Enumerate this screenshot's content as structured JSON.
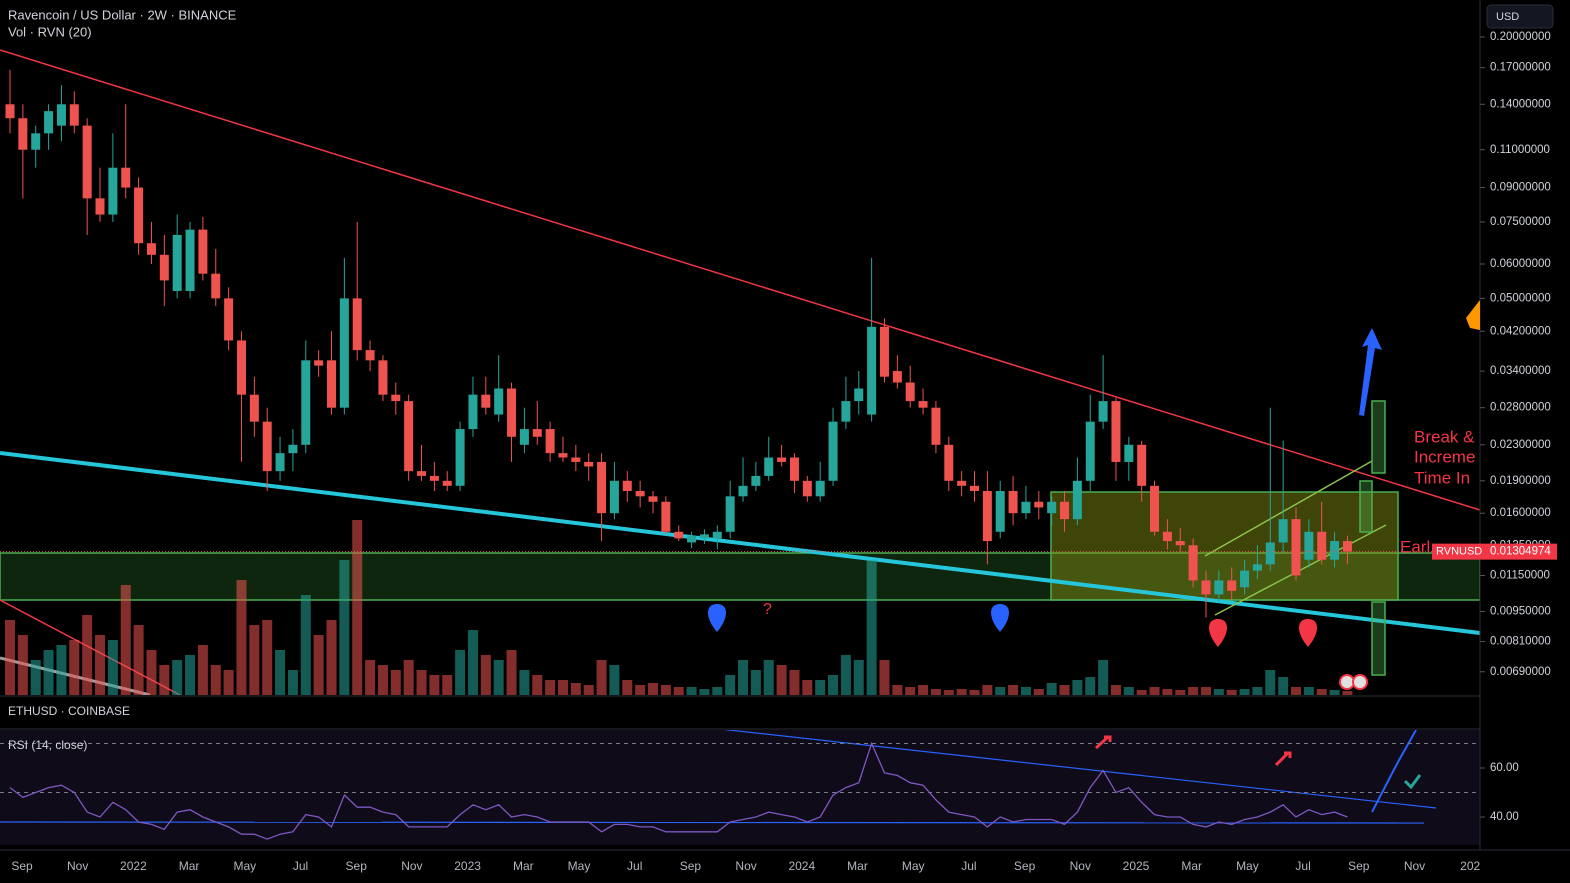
{
  "chart_data": [
    {
      "type": "candlestick",
      "title": "Ravencoin / US Dollar · 2W · BINANCE",
      "volume_label": "Vol · RVN (20)",
      "currency_button": "USD",
      "log_scale": true,
      "up_color": "#26a69a",
      "down_color": "#ef5350",
      "ylim": [
        0.0061,
        0.2434
      ],
      "yticks": [
        {
          "value": 0.2,
          "label": "0.20000000"
        },
        {
          "value": 0.17,
          "label": "0.17000000"
        },
        {
          "value": 0.14,
          "label": "0.14000000"
        },
        {
          "value": 0.11,
          "label": "0.11000000"
        },
        {
          "value": 0.09,
          "label": "0.09000000"
        },
        {
          "value": 0.075,
          "label": "0.07500000"
        },
        {
          "value": 0.06,
          "label": "0.06000000"
        },
        {
          "value": 0.05,
          "label": "0.05000000"
        },
        {
          "value": 0.042,
          "label": "0.04200000"
        },
        {
          "value": 0.034,
          "label": "0.03400000"
        },
        {
          "value": 0.028,
          "label": "0.02800000"
        },
        {
          "value": 0.023,
          "label": "0.02300000"
        },
        {
          "value": 0.019,
          "label": "0.01900000"
        },
        {
          "value": 0.016,
          "label": "0.01600000"
        },
        {
          "value": 0.0135,
          "label": "0.01350000"
        },
        {
          "value": 0.0115,
          "label": "0.01150000"
        },
        {
          "value": 0.0095,
          "label": "0.00950000"
        },
        {
          "value": 0.0081,
          "label": "0.00810000"
        },
        {
          "value": 0.0069,
          "label": "0.00690000"
        }
      ],
      "last_price": {
        "symbol": "RVNUSD",
        "value": 0.01304974
      },
      "x_labels": [
        "Sep",
        "Nov",
        "2022",
        "Mar",
        "May",
        "Jul",
        "Sep",
        "Nov",
        "2023",
        "Mar",
        "May",
        "Jul",
        "Sep",
        "Nov",
        "2024",
        "Mar",
        "May",
        "Jul",
        "Sep",
        "Nov",
        "2025",
        "Mar",
        "May",
        "Jul",
        "Sep",
        "Nov",
        "202"
      ],
      "annotations": [
        "Break &",
        "Increme",
        "Time In",
        "Earl",
        "?"
      ],
      "ohlc": [
        [
          0.14,
          0.168,
          0.12,
          0.13
        ],
        [
          0.13,
          0.14,
          0.085,
          0.11
        ],
        [
          0.11,
          0.125,
          0.1,
          0.12
        ],
        [
          0.12,
          0.14,
          0.11,
          0.135
        ],
        [
          0.125,
          0.155,
          0.115,
          0.14
        ],
        [
          0.14,
          0.15,
          0.12,
          0.125
        ],
        [
          0.125,
          0.13,
          0.07,
          0.085
        ],
        [
          0.085,
          0.1,
          0.075,
          0.078
        ],
        [
          0.078,
          0.12,
          0.075,
          0.1
        ],
        [
          0.1,
          0.14,
          0.085,
          0.09
        ],
        [
          0.09,
          0.095,
          0.063,
          0.067
        ],
        [
          0.067,
          0.075,
          0.06,
          0.063
        ],
        [
          0.063,
          0.07,
          0.048,
          0.055
        ],
        [
          0.052,
          0.078,
          0.05,
          0.07
        ],
        [
          0.052,
          0.075,
          0.05,
          0.072
        ],
        [
          0.072,
          0.077,
          0.055,
          0.057
        ],
        [
          0.057,
          0.065,
          0.048,
          0.05
        ],
        [
          0.05,
          0.053,
          0.038,
          0.04
        ],
        [
          0.04,
          0.042,
          0.021,
          0.03
        ],
        [
          0.03,
          0.033,
          0.024,
          0.026
        ],
        [
          0.026,
          0.028,
          0.018,
          0.02
        ],
        [
          0.02,
          0.024,
          0.019,
          0.022
        ],
        [
          0.022,
          0.025,
          0.02,
          0.023
        ],
        [
          0.023,
          0.04,
          0.022,
          0.036
        ],
        [
          0.036,
          0.038,
          0.033,
          0.035
        ],
        [
          0.036,
          0.042,
          0.027,
          0.028
        ],
        [
          0.028,
          0.062,
          0.027,
          0.05
        ],
        [
          0.05,
          0.075,
          0.036,
          0.038
        ],
        [
          0.038,
          0.04,
          0.034,
          0.036
        ],
        [
          0.036,
          0.037,
          0.029,
          0.03
        ],
        [
          0.03,
          0.032,
          0.027,
          0.029
        ],
        [
          0.029,
          0.03,
          0.019,
          0.02
        ],
        [
          0.02,
          0.023,
          0.019,
          0.0195
        ],
        [
          0.0195,
          0.021,
          0.018,
          0.019
        ],
        [
          0.019,
          0.02,
          0.018,
          0.0185
        ],
        [
          0.0185,
          0.026,
          0.018,
          0.025
        ],
        [
          0.025,
          0.033,
          0.024,
          0.03
        ],
        [
          0.03,
          0.033,
          0.027,
          0.028
        ],
        [
          0.027,
          0.037,
          0.026,
          0.031
        ],
        [
          0.031,
          0.032,
          0.021,
          0.024
        ],
        [
          0.023,
          0.028,
          0.022,
          0.025
        ],
        [
          0.025,
          0.029,
          0.023,
          0.024
        ],
        [
          0.025,
          0.026,
          0.021,
          0.022
        ],
        [
          0.022,
          0.024,
          0.021,
          0.0215
        ],
        [
          0.0215,
          0.023,
          0.02,
          0.021
        ],
        [
          0.021,
          0.022,
          0.019,
          0.0205
        ],
        [
          0.021,
          0.022,
          0.0138,
          0.016
        ],
        [
          0.016,
          0.021,
          0.0155,
          0.019
        ],
        [
          0.019,
          0.02,
          0.017,
          0.018
        ],
        [
          0.018,
          0.019,
          0.0165,
          0.0175
        ],
        [
          0.0175,
          0.018,
          0.016,
          0.017
        ],
        [
          0.017,
          0.0175,
          0.0143,
          0.0145
        ],
        [
          0.0145,
          0.015,
          0.0138,
          0.014
        ],
        [
          0.0137,
          0.0145,
          0.0133,
          0.0142
        ],
        [
          0.014,
          0.0147,
          0.0136,
          0.0143
        ],
        [
          0.014,
          0.015,
          0.0132,
          0.0145
        ],
        [
          0.0145,
          0.019,
          0.014,
          0.0175
        ],
        [
          0.0175,
          0.0215,
          0.017,
          0.0185
        ],
        [
          0.0185,
          0.021,
          0.018,
          0.0195
        ],
        [
          0.0195,
          0.024,
          0.019,
          0.0215
        ],
        [
          0.0215,
          0.023,
          0.0205,
          0.021
        ],
        [
          0.0215,
          0.022,
          0.0178,
          0.019
        ],
        [
          0.019,
          0.0195,
          0.017,
          0.0175
        ],
        [
          0.0175,
          0.021,
          0.017,
          0.019
        ],
        [
          0.019,
          0.028,
          0.0185,
          0.026
        ],
        [
          0.026,
          0.033,
          0.025,
          0.029
        ],
        [
          0.029,
          0.034,
          0.027,
          0.031
        ],
        [
          0.027,
          0.062,
          0.026,
          0.043
        ],
        [
          0.043,
          0.045,
          0.032,
          0.033
        ],
        [
          0.034,
          0.037,
          0.031,
          0.032
        ],
        [
          0.032,
          0.035,
          0.028,
          0.029
        ],
        [
          0.029,
          0.031,
          0.027,
          0.028
        ],
        [
          0.028,
          0.029,
          0.022,
          0.023
        ],
        [
          0.023,
          0.024,
          0.018,
          0.019
        ],
        [
          0.019,
          0.02,
          0.0175,
          0.0185
        ],
        [
          0.0185,
          0.02,
          0.017,
          0.018
        ],
        [
          0.018,
          0.02,
          0.0122,
          0.0138
        ],
        [
          0.0145,
          0.019,
          0.014,
          0.018
        ],
        [
          0.018,
          0.0195,
          0.015,
          0.016
        ],
        [
          0.016,
          0.0185,
          0.0155,
          0.017
        ],
        [
          0.017,
          0.018,
          0.0155,
          0.0165
        ],
        [
          0.016,
          0.0175,
          0.015,
          0.017
        ],
        [
          0.017,
          0.018,
          0.0145,
          0.0155
        ],
        [
          0.0155,
          0.0215,
          0.015,
          0.019
        ],
        [
          0.019,
          0.03,
          0.018,
          0.026
        ],
        [
          0.026,
          0.037,
          0.025,
          0.029
        ],
        [
          0.029,
          0.0295,
          0.019,
          0.021
        ],
        [
          0.021,
          0.024,
          0.019,
          0.023
        ],
        [
          0.023,
          0.0235,
          0.017,
          0.0185
        ],
        [
          0.0185,
          0.019,
          0.0142,
          0.0145
        ],
        [
          0.0145,
          0.0155,
          0.0132,
          0.0138
        ],
        [
          0.0138,
          0.0148,
          0.013,
          0.0135
        ],
        [
          0.0135,
          0.014,
          0.0108,
          0.0112
        ],
        [
          0.0112,
          0.0118,
          0.0092,
          0.0104
        ],
        [
          0.0104,
          0.0118,
          0.01,
          0.0112
        ],
        [
          0.0112,
          0.012,
          0.0101,
          0.0106
        ],
        [
          0.0108,
          0.0125,
          0.0104,
          0.0118
        ],
        [
          0.0118,
          0.0135,
          0.0113,
          0.0122
        ],
        [
          0.0122,
          0.028,
          0.0118,
          0.0137
        ],
        [
          0.0137,
          0.0235,
          0.013,
          0.0155
        ],
        [
          0.0155,
          0.0165,
          0.0112,
          0.0115
        ],
        [
          0.0125,
          0.0155,
          0.012,
          0.0145
        ],
        [
          0.0145,
          0.017,
          0.0122,
          0.0125
        ],
        [
          0.0125,
          0.0145,
          0.012,
          0.0138
        ],
        [
          0.0138,
          0.0142,
          0.0122,
          0.01304974
        ]
      ],
      "volume_lim": [
        0,
        180
      ],
      "volume": [
        75,
        60,
        35,
        45,
        50,
        55,
        80,
        60,
        55,
        110,
        70,
        45,
        30,
        35,
        40,
        50,
        30,
        25,
        115,
        70,
        75,
        45,
        25,
        100,
        60,
        75,
        135,
        175,
        35,
        30,
        25,
        35,
        25,
        20,
        20,
        45,
        65,
        40,
        35,
        45,
        25,
        20,
        15,
        15,
        12,
        10,
        35,
        30,
        15,
        10,
        12,
        10,
        8,
        8,
        6,
        8,
        20,
        35,
        25,
        35,
        30,
        25,
        15,
        15,
        20,
        40,
        35,
        135,
        35,
        10,
        8,
        10,
        6,
        5,
        6,
        5,
        10,
        8,
        10,
        8,
        6,
        12,
        10,
        15,
        18,
        35,
        10,
        8,
        5,
        8,
        6,
        5,
        8,
        8,
        6,
        5,
        6,
        8,
        25,
        18,
        8,
        8,
        6,
        5,
        4
      ]
    },
    {
      "type": "line",
      "symbol_label": "ETHUSD · COINBASE",
      "title": "RSI (14, close)",
      "color": "#7e57c2",
      "ylim": [
        28.6,
        75.5
      ],
      "yticks": [
        {
          "value": 60,
          "label": "60.00"
        },
        {
          "value": 40,
          "label": "40.00"
        }
      ],
      "levels": [
        70,
        50
      ],
      "values": [
        52,
        48,
        50,
        52,
        53,
        50,
        42,
        40,
        46,
        43,
        38,
        37,
        35,
        42,
        43,
        40,
        38,
        36,
        33,
        33,
        31,
        33,
        34,
        41,
        40,
        36,
        49,
        44,
        44,
        42,
        41,
        36,
        36,
        36,
        36,
        41,
        45,
        43,
        45,
        40,
        41,
        40,
        38,
        38,
        38,
        38,
        34,
        37,
        37,
        36,
        36,
        34,
        34,
        34,
        34,
        34,
        38,
        39,
        40,
        42,
        41,
        40,
        38,
        40,
        49,
        52,
        54,
        70,
        58,
        57,
        54,
        53,
        47,
        42,
        41,
        40,
        36,
        40,
        38,
        39,
        39,
        39,
        37,
        42,
        52,
        59,
        50,
        52,
        46,
        41,
        40,
        40,
        37,
        36,
        38,
        37,
        39,
        40,
        42,
        45,
        40,
        43,
        41,
        42,
        40
      ]
    }
  ]
}
